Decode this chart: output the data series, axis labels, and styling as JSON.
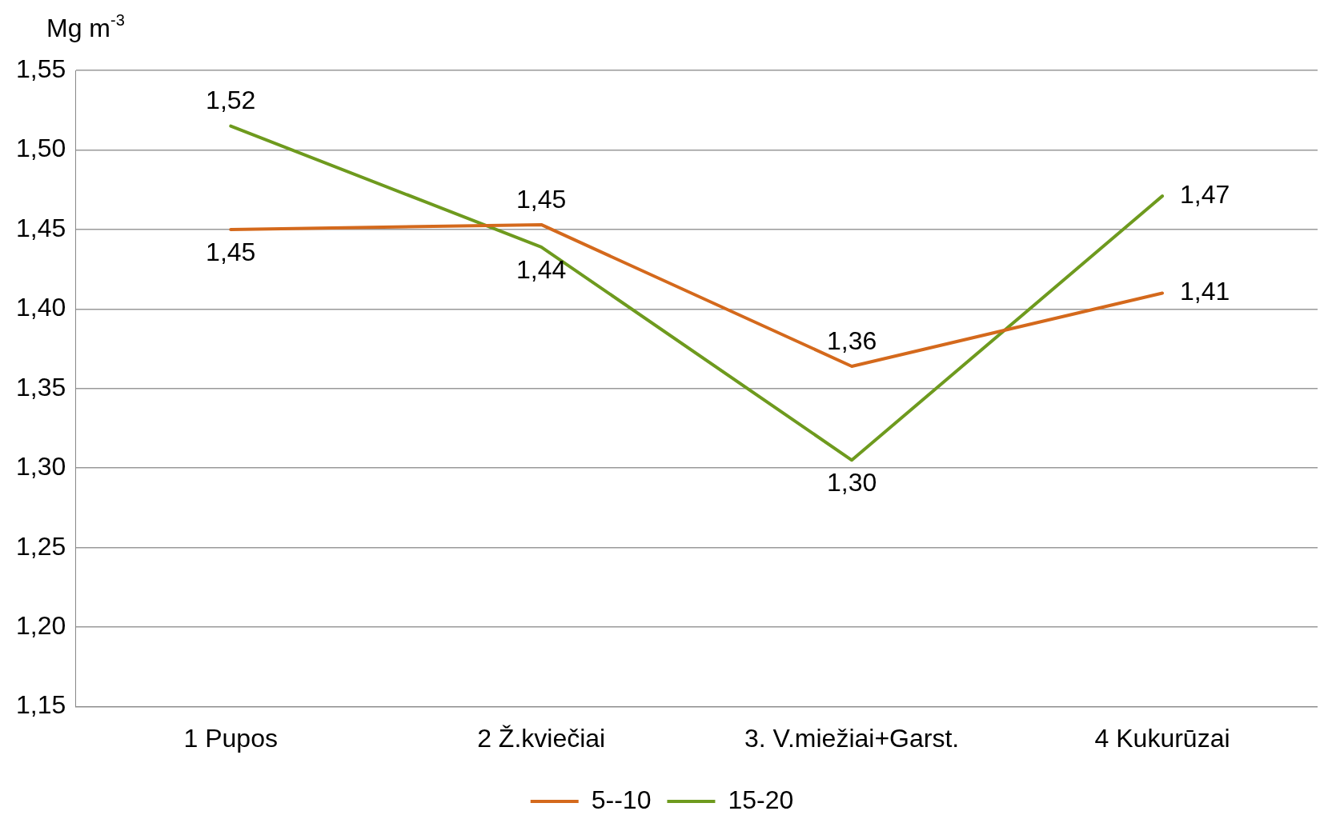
{
  "chart_data": {
    "type": "line",
    "ylabel": "Mg m$^{-3}$",
    "categories": [
      "1 Pupos",
      "2 Ž.kviečiai",
      "3. V.miežiai+Garst.",
      "4 Kukurūzai"
    ],
    "series": [
      {
        "name": "5--10",
        "color": "#d4691c",
        "values": [
          1.45,
          1.453,
          1.364,
          1.41
        ],
        "value_labels": [
          "1,45",
          "1,45",
          "1,36",
          "1,41"
        ]
      },
      {
        "name": "15-20",
        "color": "#6e9a1e",
        "values": [
          1.515,
          1.439,
          1.305,
          1.471
        ],
        "value_labels": [
          "1,52",
          "1,44",
          "1,30",
          "1,47"
        ]
      }
    ],
    "ylim": [
      1.15,
      1.55
    ],
    "yticks": [
      {
        "value": 1.15,
        "label": "1,15"
      },
      {
        "value": 1.2,
        "label": "1,20"
      },
      {
        "value": 1.25,
        "label": "1,25"
      },
      {
        "value": 1.3,
        "label": "1,30"
      },
      {
        "value": 1.35,
        "label": "1,35"
      },
      {
        "value": 1.4,
        "label": "1,40"
      },
      {
        "value": 1.45,
        "label": "1,45"
      },
      {
        "value": 1.5,
        "label": "1,50"
      },
      {
        "value": 1.55,
        "label": "1,55"
      }
    ],
    "grid": "y",
    "legend": "bottom",
    "marker": "none",
    "line_style": "solid"
  }
}
